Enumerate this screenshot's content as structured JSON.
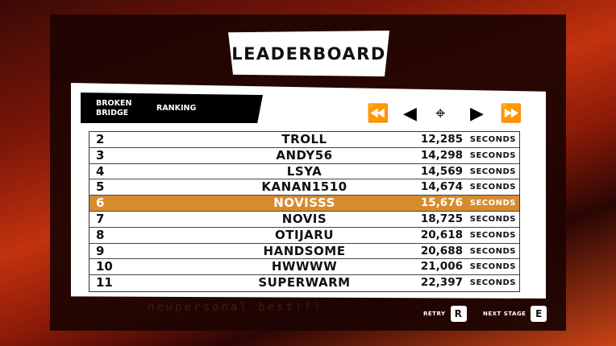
{
  "title": "LEADERBOARD",
  "stage": "BROKEN BRIDGE",
  "tab": "RANKING",
  "nav": {
    "first": "⏪",
    "prev": "◀",
    "locate": "⌖",
    "next": "▶",
    "last": "⏩"
  },
  "unit": "SECONDS",
  "highlight_color": "#d78b2f",
  "rows": [
    {
      "rank": "2",
      "name": "TROLL",
      "time": "12,285"
    },
    {
      "rank": "3",
      "name": "ANDY56",
      "time": "14,298"
    },
    {
      "rank": "4",
      "name": "LSYA",
      "time": "14,569"
    },
    {
      "rank": "5",
      "name": "KANAN1510",
      "time": "14,674"
    },
    {
      "rank": "6",
      "name": "NOVISSS",
      "time": "15,676",
      "highlighted": true
    },
    {
      "rank": "7",
      "name": "NOVIS",
      "time": "18,725"
    },
    {
      "rank": "8",
      "name": "OTIJARU",
      "time": "20,618"
    },
    {
      "rank": "9",
      "name": "HANDSOME",
      "time": "20,688"
    },
    {
      "rank": "10",
      "name": "HWWWW",
      "time": "21,006"
    },
    {
      "rank": "11",
      "name": "SUPERWARM",
      "time": "22,397"
    }
  ],
  "personal_best": "newpersonal best!!!",
  "actions": {
    "retry": "RETRY",
    "retry_key": "R",
    "next": "NEXT STAGE",
    "next_key": "E"
  }
}
